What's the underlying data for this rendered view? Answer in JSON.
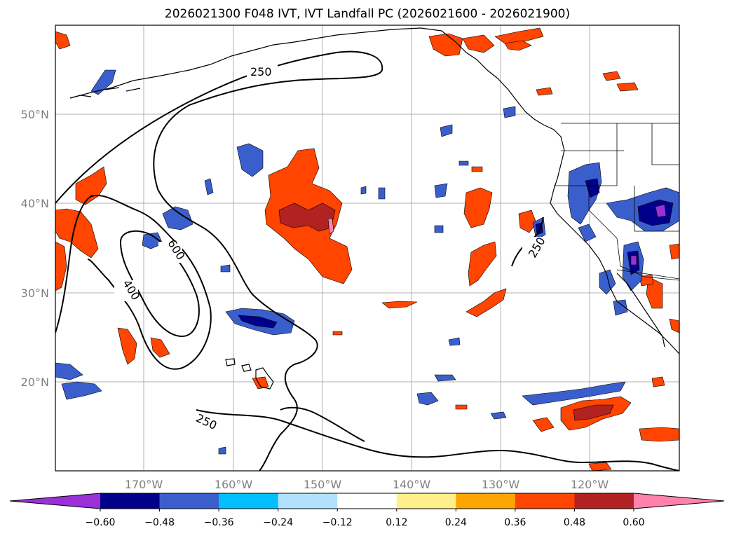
{
  "title": "2026021300 F048 IVT, IVT Landfall PC (2026021600 - 2026021900)",
  "lat_labels": [
    "50°N",
    "40°N",
    "30°N",
    "20°N"
  ],
  "lon_labels": [
    "170°W",
    "160°W",
    "150°W",
    "140°W",
    "130°W",
    "120°W"
  ],
  "contour_labels": [
    "250",
    "600",
    "400",
    "250",
    "250"
  ],
  "colorbar": {
    "ticks": [
      "−0.60",
      "−0.48",
      "−0.36",
      "−0.24",
      "−0.12",
      "0.12",
      "0.24",
      "0.36",
      "0.48",
      "0.60"
    ],
    "colors": [
      "#9b30d9",
      "#00008b",
      "#3a5fcd",
      "#00bfff",
      "#b0e2ff",
      "#ffffff",
      "#fff08a",
      "#ffa500",
      "#ff4500",
      "#b22222",
      "#ff82ab"
    ]
  },
  "colors": {
    "land_outline": "#000000",
    "grid": "#b0b0b0",
    "negative_strong": "#00008b",
    "negative_mid": "#3a5fcd",
    "negative_weak": "#00bfff",
    "positive_weak": "#ffa500",
    "positive_mid": "#ff4500",
    "positive_strong": "#b22222",
    "positive_max": "#ff82ab"
  }
}
